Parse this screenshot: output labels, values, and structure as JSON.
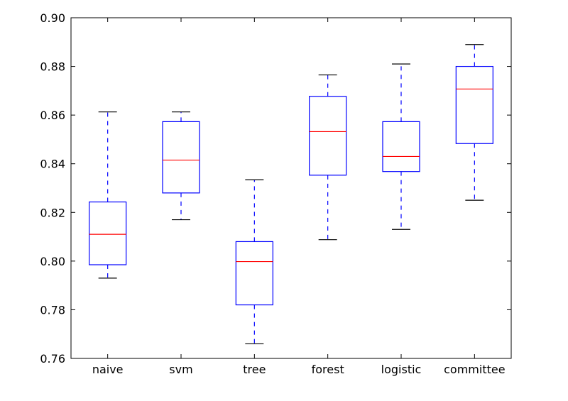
{
  "chart_data": {
    "type": "boxplot",
    "title": "",
    "xlabel": "",
    "ylabel": "",
    "ylim": [
      0.76,
      0.9
    ],
    "yticks": [
      "0.76",
      "0.78",
      "0.80",
      "0.82",
      "0.84",
      "0.86",
      "0.88",
      "0.90"
    ],
    "categories": [
      "naive",
      "svm",
      "tree",
      "forest",
      "logistic",
      "committee"
    ],
    "boxes": [
      {
        "name": "naive",
        "whisker_low": 0.793,
        "q1": 0.7985,
        "median": 0.811,
        "q3": 0.8243,
        "whisker_high": 0.8613
      },
      {
        "name": "svm",
        "whisker_low": 0.817,
        "q1": 0.828,
        "median": 0.8415,
        "q3": 0.8573,
        "whisker_high": 0.8613
      },
      {
        "name": "tree",
        "whisker_low": 0.766,
        "q1": 0.782,
        "median": 0.7998,
        "q3": 0.808,
        "whisker_high": 0.8334
      },
      {
        "name": "forest",
        "whisker_low": 0.8088,
        "q1": 0.8353,
        "median": 0.8532,
        "q3": 0.8677,
        "whisker_high": 0.8765
      },
      {
        "name": "logistic",
        "whisker_low": 0.813,
        "q1": 0.8368,
        "median": 0.843,
        "q3": 0.8573,
        "whisker_high": 0.881
      },
      {
        "name": "committee",
        "whisker_low": 0.825,
        "q1": 0.8483,
        "median": 0.8707,
        "q3": 0.88,
        "whisker_high": 0.889
      }
    ],
    "grid": false,
    "colors": {
      "box": "#0000ff",
      "median": "#ff0000",
      "cap": "#000000",
      "axes": "#000000"
    }
  }
}
